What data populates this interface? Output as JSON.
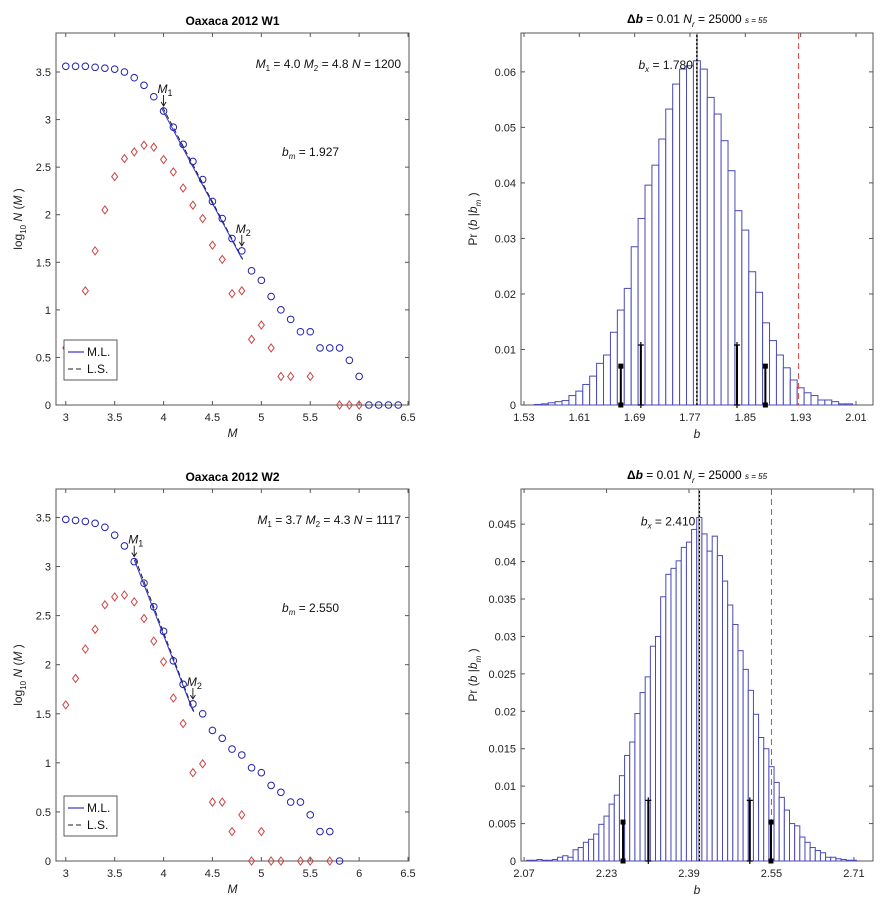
{
  "chart_data": [
    {
      "id": "w1-fmd",
      "type": "scatter",
      "title": "Oaxaca 2012  W1",
      "xlabel": "M",
      "ylabel": "log10 N (M)",
      "xlim": [
        2.9,
        6.51
      ],
      "ylim": [
        0,
        3.91
      ],
      "xticks": [
        3,
        3.5,
        4,
        4.5,
        5,
        5.5,
        6,
        6.5
      ],
      "xtick_labels": [
        "3",
        "3.5",
        "4",
        "4.5",
        "5",
        "5.5",
        "6",
        "6.5"
      ],
      "yticks": [
        0,
        0.5,
        1,
        1.5,
        2,
        2.5,
        3,
        3.5
      ],
      "ytick_labels": [
        "0",
        "0.5",
        "1",
        "1.5",
        "2",
        "2.5",
        "3",
        "3.5"
      ],
      "annotation": {
        "M1": "4.0",
        "M2": "4.8",
        "N": "1200",
        "bm": "1.927"
      },
      "m1_label": "M",
      "m1_sub": "1",
      "m2_label": "M",
      "m2_sub": "2",
      "legend": {
        "placement": "bottom-left",
        "entries": [
          "M.L.",
          "L.S."
        ]
      },
      "fit": {
        "x": [
          3.98,
          4.8
        ],
        "y": [
          3.12,
          1.54
        ]
      },
      "m1_x": 4.0,
      "m2_x": 4.8,
      "series": [
        {
          "name": "cumulative",
          "marker": "circle",
          "color": "#2222aa",
          "x": [
            3.0,
            3.1,
            3.2,
            3.3,
            3.4,
            3.5,
            3.6,
            3.7,
            3.8,
            3.9,
            4.0,
            4.1,
            4.2,
            4.3,
            4.4,
            4.5,
            4.6,
            4.7,
            4.8,
            4.9,
            5.0,
            5.1,
            5.2,
            5.3,
            5.4,
            5.5,
            5.6,
            5.7,
            5.8,
            5.9,
            6.0,
            6.1,
            6.2,
            6.3,
            6.4
          ],
          "y": [
            3.56,
            3.56,
            3.56,
            3.55,
            3.54,
            3.53,
            3.5,
            3.44,
            3.36,
            3.24,
            3.09,
            2.92,
            2.74,
            2.56,
            2.37,
            2.14,
            1.96,
            1.75,
            1.62,
            1.41,
            1.31,
            1.14,
            1.0,
            0.9,
            0.77,
            0.77,
            0.6,
            0.6,
            0.6,
            0.47,
            0.3,
            0,
            0,
            0,
            0
          ]
        },
        {
          "name": "non-cumulative",
          "marker": "diamond",
          "color": "#cc4444",
          "x": [
            3.0,
            3.2,
            3.3,
            3.4,
            3.5,
            3.6,
            3.7,
            3.8,
            3.9,
            4.0,
            4.1,
            4.2,
            4.3,
            4.4,
            4.5,
            4.6,
            4.7,
            4.8,
            4.9,
            5.0,
            5.1,
            5.2,
            5.3,
            5.5,
            5.8,
            5.9,
            6.0
          ],
          "y": [
            0.6,
            1.2,
            1.62,
            2.05,
            2.4,
            2.59,
            2.66,
            2.73,
            2.71,
            2.58,
            2.45,
            2.28,
            2.1,
            1.96,
            1.68,
            1.53,
            1.17,
            1.2,
            0.69,
            0.84,
            0.6,
            0.3,
            0.3,
            0.3,
            0,
            0,
            0
          ]
        }
      ]
    },
    {
      "id": "w1-hist",
      "type": "bar",
      "title_parts": {
        "delta": "Δ",
        "b": "b",
        "eq": " = 0.01  ",
        "nr": "N",
        "nr_sub": "r",
        "nr_val": " = 25000  ",
        "s": "s = 55"
      },
      "xlabel": "b",
      "ylabel": "Pr (b | b_m)",
      "xlim": [
        1.5257,
        2.0346
      ],
      "ylim": [
        0,
        0.067
      ],
      "xticks": [
        1.53,
        1.61,
        1.69,
        1.77,
        1.85,
        1.93,
        2.01
      ],
      "xtick_labels": [
        "1.53",
        "1.61",
        "1.69",
        "1.77",
        "1.85",
        "1.93",
        "2.01"
      ],
      "yticks": [
        0,
        0.01,
        0.02,
        0.03,
        0.04,
        0.05,
        0.06
      ],
      "ytick_labels": [
        "0",
        "0.01",
        "0.02",
        "0.03",
        "0.04",
        "0.05",
        "0.06"
      ],
      "bin_width": 0.01,
      "bx": 1.78,
      "bx_text": "1.780",
      "bm": 1.927,
      "bins": [
        1.55,
        1.56,
        1.57,
        1.58,
        1.59,
        1.6,
        1.61,
        1.62,
        1.63,
        1.64,
        1.65,
        1.66,
        1.67,
        1.68,
        1.69,
        1.7,
        1.71,
        1.72,
        1.73,
        1.74,
        1.75,
        1.76,
        1.77,
        1.78,
        1.79,
        1.8,
        1.81,
        1.82,
        1.83,
        1.84,
        1.85,
        1.86,
        1.87,
        1.88,
        1.89,
        1.9,
        1.91,
        1.92,
        1.93,
        1.94,
        1.95,
        1.96,
        1.97,
        1.98,
        1.99,
        2.0
      ],
      "values": [
        0.0001,
        0.0002,
        0.0004,
        0.0006,
        0.0008,
        0.0017,
        0.0025,
        0.0037,
        0.0052,
        0.0075,
        0.009,
        0.0131,
        0.0171,
        0.021,
        0.0285,
        0.0336,
        0.0396,
        0.0432,
        0.0479,
        0.0533,
        0.0578,
        0.0605,
        0.0611,
        0.062,
        0.0605,
        0.0554,
        0.0524,
        0.0476,
        0.0422,
        0.035,
        0.0315,
        0.024,
        0.0203,
        0.0148,
        0.0116,
        0.009,
        0.0067,
        0.0045,
        0.0031,
        0.0022,
        0.0017,
        0.0009,
        0.0009,
        0.0006,
        0.0002,
        0.0002
      ],
      "error_bars": [
        {
          "x": 1.67,
          "top": 0.007,
          "marker": "square"
        },
        {
          "x": 1.699,
          "top": 0.0108,
          "marker": "cross"
        },
        {
          "x": 1.838,
          "top": 0.0108,
          "marker": "cross"
        },
        {
          "x": 1.879,
          "top": 0.007,
          "marker": "square"
        }
      ]
    },
    {
      "id": "w2-fmd",
      "type": "scatter",
      "title": "Oaxaca 2012  W2",
      "xlabel": "M",
      "ylabel": "log10 N (M)",
      "xlim": [
        2.9,
        6.51
      ],
      "ylim": [
        0,
        3.79
      ],
      "xticks": [
        3,
        3.5,
        4,
        4.5,
        5,
        5.5,
        6,
        6.5
      ],
      "xtick_labels": [
        "3",
        "3.5",
        "4",
        "4.5",
        "5",
        "5.5",
        "6",
        "6.5"
      ],
      "yticks": [
        0,
        0.5,
        1,
        1.5,
        2,
        2.5,
        3,
        3.5
      ],
      "ytick_labels": [
        "0",
        "0.5",
        "1",
        "1.5",
        "2",
        "2.5",
        "3",
        "3.5"
      ],
      "annotation": {
        "M1": "3.7",
        "M2": "4.3",
        "N": "1117",
        "bm": "2.550"
      },
      "m1_label": "M",
      "m1_sub": "1",
      "m2_label": "M",
      "m2_sub": "2",
      "legend": {
        "placement": "bottom-left",
        "entries": [
          "M.L.",
          "L.S."
        ]
      },
      "fit": {
        "x": [
          3.7,
          4.3
        ],
        "y": [
          3.07,
          1.53
        ]
      },
      "m1_x": 3.7,
      "m2_x": 4.3,
      "series": [
        {
          "name": "cumulative",
          "marker": "circle",
          "color": "#2222aa",
          "x": [
            3.0,
            3.1,
            3.2,
            3.3,
            3.4,
            3.5,
            3.6,
            3.7,
            3.8,
            3.9,
            4.0,
            4.1,
            4.2,
            4.3,
            4.4,
            4.5,
            4.6,
            4.7,
            4.8,
            4.9,
            5.0,
            5.1,
            5.2,
            5.3,
            5.4,
            5.5,
            5.6,
            5.7,
            5.8
          ],
          "y": [
            3.48,
            3.47,
            3.46,
            3.44,
            3.4,
            3.32,
            3.21,
            3.05,
            2.83,
            2.59,
            2.34,
            2.04,
            1.8,
            1.6,
            1.5,
            1.33,
            1.25,
            1.14,
            1.08,
            0.95,
            0.9,
            0.77,
            0.7,
            0.6,
            0.6,
            0.47,
            0.3,
            0.3,
            0
          ]
        },
        {
          "name": "non-cumulative",
          "marker": "diamond",
          "color": "#cc4444",
          "x": [
            3.0,
            3.1,
            3.2,
            3.3,
            3.4,
            3.5,
            3.6,
            3.7,
            3.8,
            3.9,
            4.0,
            4.1,
            4.2,
            4.3,
            4.4,
            4.5,
            4.6,
            4.7,
            4.8,
            4.9,
            5.0,
            5.1,
            5.2,
            5.4,
            5.5,
            5.7
          ],
          "y": [
            1.59,
            1.86,
            2.16,
            2.36,
            2.61,
            2.69,
            2.71,
            2.64,
            2.47,
            2.24,
            2.03,
            1.66,
            1.4,
            0.9,
            0.99,
            0.6,
            0.6,
            0.3,
            0.47,
            0,
            0.3,
            0,
            0,
            0,
            0,
            0
          ]
        }
      ]
    },
    {
      "id": "w2-hist",
      "type": "bar",
      "title_parts": {
        "delta": "Δ",
        "b": "b",
        "eq": " = 0.01  ",
        "nr": "N",
        "nr_sub": "r",
        "nr_val": " = 25000  ",
        "s": "s = 55"
      },
      "xlabel": "b",
      "ylabel": "Pr (b | b_m)",
      "xlim": [
        2.064,
        2.747
      ],
      "ylim": [
        0,
        0.0497
      ],
      "xticks": [
        2.07,
        2.23,
        2.39,
        2.55,
        2.71
      ],
      "xtick_labels": [
        "2.07",
        "2.23",
        "2.39",
        "2.55",
        "2.71"
      ],
      "yticks": [
        0,
        0.005,
        0.01,
        0.015,
        0.02,
        0.025,
        0.03,
        0.035,
        0.04,
        0.045
      ],
      "ytick_labels": [
        "0",
        "0.005",
        "0.01",
        "0.015",
        "0.02",
        "0.025",
        "0.03",
        "0.035",
        "0.04",
        "0.045"
      ],
      "bin_width": 0.01,
      "bx": 2.41,
      "bx_text": "2.410",
      "bm": 2.55,
      "bins": [
        2.08,
        2.09,
        2.1,
        2.11,
        2.12,
        2.13,
        2.14,
        2.15,
        2.16,
        2.17,
        2.18,
        2.19,
        2.2,
        2.21,
        2.22,
        2.23,
        2.24,
        2.25,
        2.26,
        2.27,
        2.28,
        2.29,
        2.3,
        2.31,
        2.32,
        2.33,
        2.34,
        2.35,
        2.36,
        2.37,
        2.38,
        2.39,
        2.4,
        2.41,
        2.42,
        2.43,
        2.44,
        2.45,
        2.46,
        2.47,
        2.48,
        2.49,
        2.5,
        2.51,
        2.52,
        2.53,
        2.54,
        2.55,
        2.56,
        2.57,
        2.58,
        2.59,
        2.6,
        2.61,
        2.62,
        2.63,
        2.64,
        2.65,
        2.66,
        2.67,
        2.68,
        2.69,
        2.7,
        2.71
      ],
      "values": [
        0.0001,
        0.0001,
        0.0002,
        0.0001,
        0.0001,
        0.0002,
        0.0005,
        0.0007,
        0.0005,
        0.0015,
        0.0018,
        0.0025,
        0.0029,
        0.0036,
        0.0049,
        0.006,
        0.0076,
        0.0088,
        0.0114,
        0.0141,
        0.0159,
        0.0197,
        0.0225,
        0.0246,
        0.0287,
        0.03,
        0.0353,
        0.0383,
        0.0391,
        0.0401,
        0.0419,
        0.0426,
        0.0443,
        0.0459,
        0.0437,
        0.0414,
        0.0434,
        0.0408,
        0.0374,
        0.0342,
        0.0316,
        0.0281,
        0.0256,
        0.0228,
        0.0196,
        0.0165,
        0.015,
        0.0126,
        0.0105,
        0.0085,
        0.0068,
        0.005,
        0.0047,
        0.0032,
        0.0025,
        0.0018,
        0.0014,
        0.0011,
        0.0005,
        0.0005,
        0.0003,
        0.0002,
        0.0001,
        0.0001
      ],
      "error_bars": [
        {
          "x": 2.262,
          "top": 0.0052,
          "marker": "square"
        },
        {
          "x": 2.311,
          "top": 0.0081,
          "marker": "cross"
        },
        {
          "x": 2.508,
          "top": 0.0081,
          "marker": "cross"
        },
        {
          "x": 2.549,
          "top": 0.0052,
          "marker": "square"
        }
      ]
    }
  ]
}
